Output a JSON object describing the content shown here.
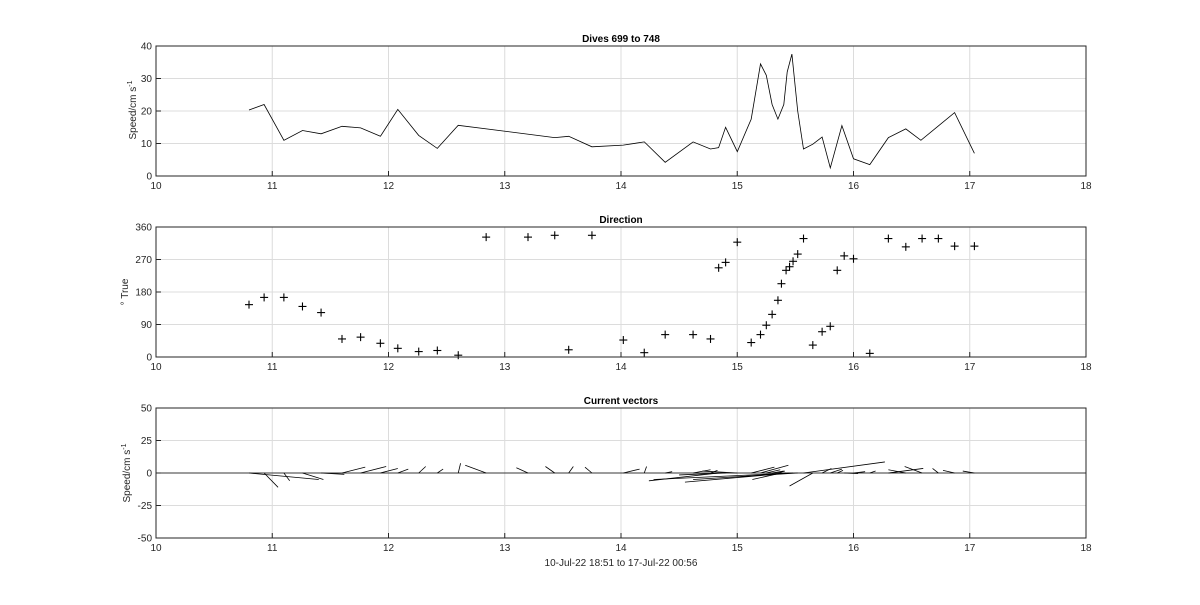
{
  "chart_data": [
    {
      "type": "line",
      "title": "Dives 699 to 748",
      "ylabel": "Speed/cm s",
      "ylabel_sup": "-1",
      "xlim": [
        10,
        18
      ],
      "ylim": [
        0,
        40
      ],
      "xticks": [
        "10",
        "11",
        "12",
        "13",
        "14",
        "15",
        "16",
        "17",
        "18"
      ],
      "yticks": [
        "0",
        "10",
        "20",
        "30",
        "40"
      ],
      "grid": true,
      "x": [
        10.8,
        10.93,
        11.1,
        11.26,
        11.42,
        11.6,
        11.76,
        11.93,
        12.08,
        12.26,
        12.42,
        12.6,
        13.43,
        13.55,
        13.75,
        14.02,
        14.2,
        14.38,
        14.62,
        14.77,
        14.84,
        14.9,
        15.0,
        15.12,
        15.2,
        15.25,
        15.3,
        15.35,
        15.4,
        15.43,
        15.47,
        15.52,
        15.57,
        15.65,
        15.73,
        15.8,
        15.9,
        16.0,
        16.14,
        16.3,
        16.45,
        16.58,
        16.87,
        17.04
      ],
      "y": [
        20.3,
        22.0,
        11.0,
        14.0,
        13.0,
        15.3,
        14.8,
        12.2,
        20.5,
        12.5,
        8.5,
        15.6,
        11.8,
        12.2,
        9.0,
        9.5,
        10.5,
        4.2,
        10.5,
        8.3,
        8.7,
        15.0,
        7.5,
        17.5,
        34.5,
        31.0,
        22.0,
        17.5,
        22.0,
        32.0,
        37.5,
        20.0,
        8.3,
        9.8,
        12.0,
        2.5,
        15.5,
        5.3,
        3.5,
        11.8,
        14.5,
        11.0,
        19.5,
        7.0
      ]
    },
    {
      "type": "scatter",
      "title": "Direction",
      "ylabel": "° True",
      "xlim": [
        10,
        18
      ],
      "ylim": [
        0,
        360
      ],
      "xticks": [
        "10",
        "11",
        "12",
        "13",
        "14",
        "15",
        "16",
        "17",
        "18"
      ],
      "yticks": [
        "0",
        "90",
        "180",
        "270",
        "360"
      ],
      "grid": true,
      "marker": "+",
      "x": [
        10.8,
        10.93,
        11.1,
        11.26,
        11.42,
        11.6,
        11.76,
        11.93,
        12.08,
        12.26,
        12.42,
        12.6,
        12.84,
        13.2,
        13.43,
        13.55,
        13.75,
        14.02,
        14.2,
        14.38,
        14.62,
        14.77,
        14.84,
        14.9,
        15.0,
        15.12,
        15.2,
        15.25,
        15.3,
        15.35,
        15.38,
        15.42,
        15.45,
        15.48,
        15.52,
        15.57,
        15.65,
        15.73,
        15.8,
        15.86,
        15.92,
        16.0,
        16.14,
        16.3,
        16.45,
        16.59,
        16.73,
        16.87,
        17.04
      ],
      "y": [
        145,
        165,
        165,
        140,
        123,
        50,
        55,
        38,
        24,
        15,
        18,
        5,
        332,
        332,
        337,
        20,
        337,
        47,
        12,
        62,
        62,
        50,
        247,
        262,
        318,
        40,
        62,
        88,
        118,
        157,
        203,
        240,
        250,
        265,
        285,
        328,
        33,
        70,
        85,
        240,
        280,
        272,
        10,
        328,
        305,
        328,
        328,
        307,
        307
      ]
    },
    {
      "type": "vector",
      "title": "Current vectors",
      "ylabel": "Speed/cm s",
      "ylabel_sup": "-1",
      "xlabel": "10-Jul-22 18:51 to 17-Jul-22 00:56",
      "xlim": [
        10,
        18
      ],
      "ylim": [
        -50,
        50
      ],
      "xticks": [
        "10",
        "11",
        "12",
        "13",
        "14",
        "15",
        "16",
        "17",
        "18"
      ],
      "yticks": [
        "-50",
        "-25",
        "0",
        "25",
        "50"
      ],
      "grid": true,
      "vectors": [
        {
          "x": 10.8,
          "u": 0.6,
          "v": -0.1
        },
        {
          "x": 10.93,
          "u": 0.12,
          "v": -0.22
        },
        {
          "x": 11.1,
          "u": 0.05,
          "v": -0.12
        },
        {
          "x": 11.26,
          "u": 0.18,
          "v": -0.1
        },
        {
          "x": 11.42,
          "u": 0.2,
          "v": -0.02
        },
        {
          "x": 11.6,
          "u": 0.2,
          "v": 0.09
        },
        {
          "x": 11.76,
          "u": 0.22,
          "v": 0.1
        },
        {
          "x": 11.93,
          "u": 0.15,
          "v": 0.07
        },
        {
          "x": 12.08,
          "u": 0.09,
          "v": 0.06
        },
        {
          "x": 12.26,
          "u": 0.06,
          "v": 0.1
        },
        {
          "x": 12.42,
          "u": 0.05,
          "v": 0.06
        },
        {
          "x": 12.6,
          "u": 0.02,
          "v": 0.15
        },
        {
          "x": 12.84,
          "u": -0.18,
          "v": 0.12
        },
        {
          "x": 13.2,
          "u": -0.1,
          "v": 0.08
        },
        {
          "x": 13.43,
          "u": -0.08,
          "v": 0.1
        },
        {
          "x": 13.55,
          "u": 0.04,
          "v": 0.1
        },
        {
          "x": 13.75,
          "u": -0.06,
          "v": 0.09
        },
        {
          "x": 14.02,
          "u": 0.14,
          "v": 0.06
        },
        {
          "x": 14.2,
          "u": 0.02,
          "v": 0.1
        },
        {
          "x": 14.38,
          "u": 0.06,
          "v": 0.02
        },
        {
          "x": 14.62,
          "u": 0.15,
          "v": 0.05
        },
        {
          "x": 14.77,
          "u": 0.06,
          "v": 0.04
        },
        {
          "x": 14.84,
          "u": -0.6,
          "v": -0.12
        },
        {
          "x": 14.9,
          "u": -0.4,
          "v": -0.03
        },
        {
          "x": 15.0,
          "u": -0.3,
          "v": 0.03
        },
        {
          "x": 15.12,
          "u": 0.2,
          "v": 0.09
        },
        {
          "x": 15.2,
          "u": 0.24,
          "v": 0.12
        },
        {
          "x": 15.25,
          "u": 0.12,
          "v": 0.05
        },
        {
          "x": 15.3,
          "u": 0.1,
          "v": 0.03
        },
        {
          "x": 15.35,
          "u": 0.06,
          "v": 0.03
        },
        {
          "x": 15.38,
          "u": -0.25,
          "v": -0.1
        },
        {
          "x": 15.42,
          "u": -0.4,
          "v": -0.06
        },
        {
          "x": 15.45,
          "u": -0.9,
          "v": -0.14
        },
        {
          "x": 15.48,
          "u": -1.2,
          "v": -0.1
        },
        {
          "x": 15.52,
          "u": -0.9,
          "v": -0.1
        },
        {
          "x": 15.57,
          "u": 0.7,
          "v": 0.17
        },
        {
          "x": 15.65,
          "u": -0.2,
          "v": -0.2
        },
        {
          "x": 15.73,
          "u": 0.08,
          "v": 0.07
        },
        {
          "x": 15.8,
          "u": 0.1,
          "v": 0.06
        },
        {
          "x": 15.86,
          "u": 0.05,
          "v": 0.04
        },
        {
          "x": 15.92,
          "u": 0.12,
          "v": -0.01
        },
        {
          "x": 16.0,
          "u": 0.1,
          "v": 0.02
        },
        {
          "x": 16.14,
          "u": 0.05,
          "v": 0.03
        },
        {
          "x": 16.3,
          "u": 0.3,
          "v": 0.07
        },
        {
          "x": 16.45,
          "u": -0.15,
          "v": 0.05
        },
        {
          "x": 16.59,
          "u": -0.15,
          "v": 0.1
        },
        {
          "x": 16.73,
          "u": -0.05,
          "v": 0.07
        },
        {
          "x": 16.87,
          "u": -0.1,
          "v": 0.04
        },
        {
          "x": 17.04,
          "u": -0.1,
          "v": 0.03
        }
      ]
    }
  ]
}
